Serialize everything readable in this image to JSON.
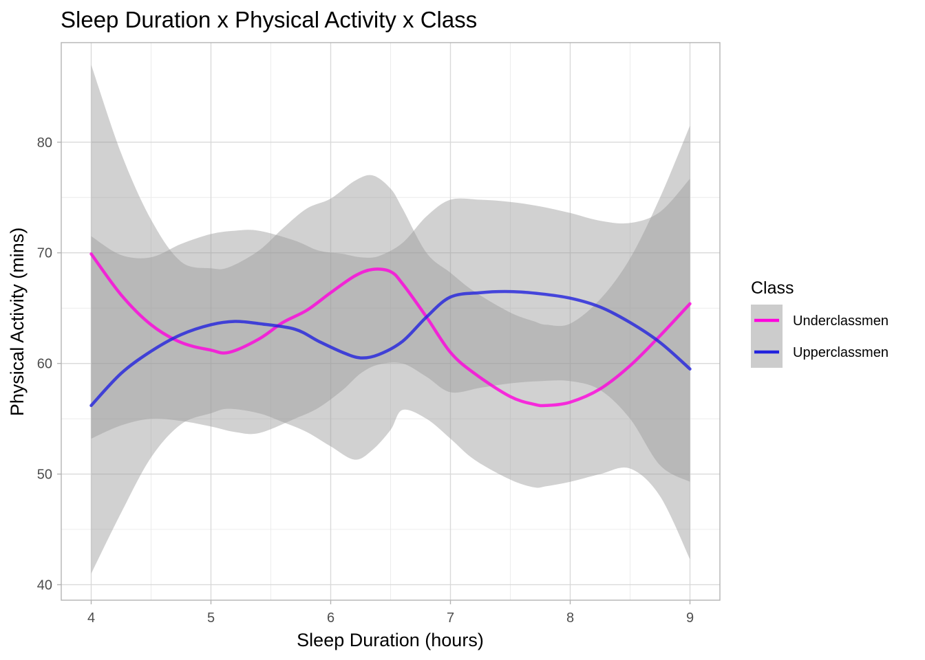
{
  "chart_data": {
    "type": "line",
    "title": "Sleep Duration x Physical Activity x Class",
    "xlabel": "Sleep Duration (hours)",
    "ylabel": "Physical Activity (mins)",
    "xlim": [
      3.75,
      9.25
    ],
    "ylim": [
      38.6,
      89.0
    ],
    "x_ticks": [
      4,
      5,
      6,
      7,
      8,
      9
    ],
    "y_ticks": [
      40,
      50,
      60,
      70,
      80
    ],
    "grid": true,
    "legend": {
      "title": "Class",
      "position": "right"
    },
    "series": [
      {
        "name": "Underclassmen",
        "color": "#ff00dd",
        "x": [
          4.0,
          4.25,
          4.5,
          4.75,
          5.0,
          5.15,
          5.4,
          5.6,
          5.8,
          6.0,
          6.2,
          6.35,
          6.5,
          6.6,
          6.8,
          7.0,
          7.2,
          7.5,
          7.7,
          7.8,
          8.0,
          8.25,
          8.5,
          8.75,
          9.0
        ],
        "y": [
          69.9,
          66.2,
          63.5,
          61.9,
          61.2,
          61.0,
          62.2,
          63.7,
          64.8,
          66.4,
          67.9,
          68.5,
          68.3,
          67.2,
          64.2,
          61.0,
          59.1,
          57.0,
          56.3,
          56.2,
          56.5,
          57.7,
          59.8,
          62.5,
          65.4
        ],
        "ci_lower": [
          41.0,
          46.5,
          51.5,
          54.5,
          55.5,
          55.9,
          55.5,
          54.7,
          53.8,
          52.5,
          51.3,
          52.2,
          54.0,
          55.8,
          55.0,
          53.2,
          51.3,
          49.5,
          48.8,
          48.9,
          49.3,
          50.0,
          50.5,
          48.0,
          42.3
        ],
        "ci_upper": [
          87.0,
          79.0,
          73.0,
          69.2,
          68.6,
          68.7,
          70.2,
          72.2,
          74.0,
          74.9,
          76.5,
          77.0,
          75.8,
          74.0,
          70.0,
          68.2,
          66.5,
          64.6,
          63.8,
          63.5,
          63.6,
          65.8,
          69.5,
          75.0,
          81.5
        ]
      },
      {
        "name": "Upperclassmen",
        "color": "#2222dd",
        "x": [
          4.0,
          4.25,
          4.5,
          4.75,
          5.0,
          5.2,
          5.4,
          5.7,
          5.9,
          6.1,
          6.25,
          6.4,
          6.6,
          6.8,
          7.0,
          7.25,
          7.5,
          7.75,
          8.0,
          8.25,
          8.5,
          8.75,
          9.0
        ],
        "y": [
          56.2,
          59.1,
          61.1,
          62.6,
          63.5,
          63.8,
          63.6,
          63.1,
          62.0,
          61.0,
          60.5,
          60.8,
          62.0,
          64.2,
          66.0,
          66.4,
          66.5,
          66.3,
          65.9,
          65.1,
          63.7,
          61.9,
          59.5
        ],
        "ci_lower": [
          53.2,
          54.4,
          55.0,
          54.8,
          54.3,
          53.8,
          53.7,
          55.0,
          56.0,
          57.6,
          59.1,
          59.9,
          60.0,
          58.8,
          57.4,
          57.8,
          58.2,
          58.4,
          58.4,
          57.6,
          55.0,
          50.8,
          49.3
        ],
        "ci_upper": [
          71.5,
          69.8,
          69.6,
          70.8,
          71.7,
          72.0,
          72.0,
          71.1,
          70.2,
          69.9,
          69.6,
          69.7,
          70.9,
          73.3,
          74.8,
          74.8,
          74.6,
          74.2,
          73.6,
          72.9,
          72.7,
          73.7,
          76.7
        ]
      }
    ]
  },
  "colors": {
    "ribbon": "#999999",
    "grid_major": "#d9d9d9",
    "grid_minor": "#ececec",
    "panel_border": "#b3b3b3",
    "legend_key_bg": "#cccccc"
  }
}
